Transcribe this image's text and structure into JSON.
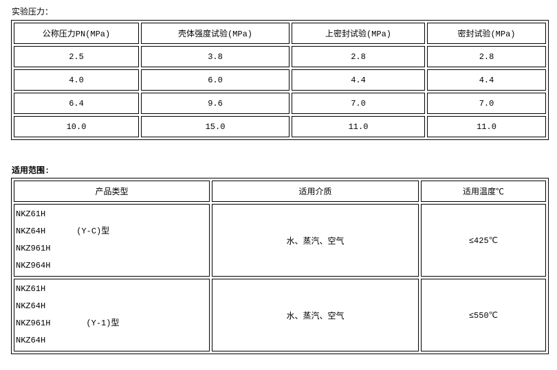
{
  "test_pressure": {
    "title": "实验压力：",
    "headers": [
      "公称压力PN(MPa)",
      "壳体强度试验(MPa)",
      "上密封试验(MPa)",
      "密封试验(MPa)"
    ],
    "rows": [
      [
        "2.5",
        "3.8",
        "2.8",
        "2.8"
      ],
      [
        "4.0",
        "6.0",
        "4.4",
        "4.4"
      ],
      [
        "6.4",
        "9.6",
        "7.0",
        "7.0"
      ],
      [
        "10.0",
        "15.0",
        "11.0",
        "11.0"
      ]
    ]
  },
  "scope": {
    "title": "适用范围:",
    "headers": [
      "产品类型",
      "适用介质",
      "适用温度℃"
    ],
    "rows": [
      {
        "models": [
          "NKZ61H",
          "NKZ64H",
          "NKZ961H",
          "NKZ964H"
        ],
        "type": "(Y-C)型",
        "medium": "水、蒸汽、空气",
        "temp": "≤425℃"
      },
      {
        "models": [
          "NKZ61H",
          "NKZ64H",
          "NKZ961H",
          "NKZ64H"
        ],
        "type": "(Y-1)型",
        "medium": "水、蒸汽、空气",
        "temp": "≤550℃"
      }
    ]
  }
}
